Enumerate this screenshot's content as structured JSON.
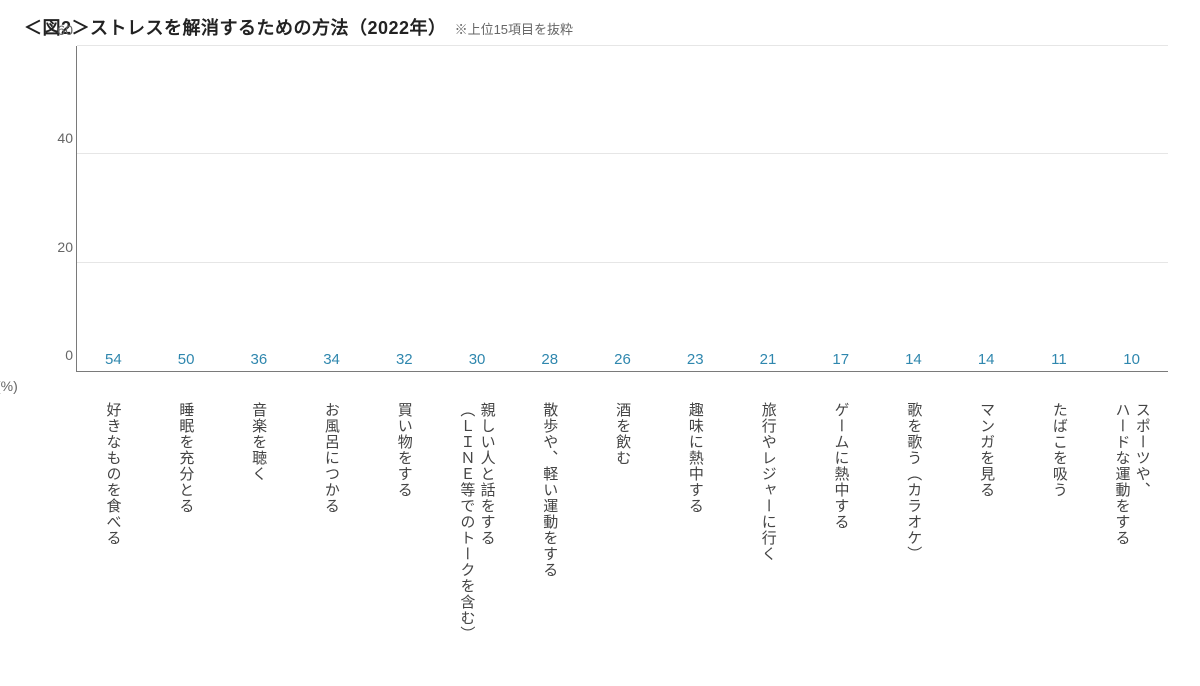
{
  "title": "＜図2＞ストレスを解消するための方法（2022年）",
  "subtitle": "※上位15項目を抜粋",
  "unit_label": "(%)",
  "chart": {
    "type": "bar",
    "ylim": [
      0,
      60
    ],
    "ytick_step": 20,
    "yticks": [
      0,
      20,
      40,
      60
    ],
    "bar_color": "#8bd2ee",
    "value_label_color": "#2f87ae",
    "axis_color": "#7a7a7a",
    "grid_color": "#e6e6e6",
    "background_color": "#ffffff",
    "tick_fontsize": 14,
    "value_fontsize": 15,
    "xlabel_fontsize": 15,
    "bar_width_ratio": 0.78,
    "categories": [
      "好きなものを食べる",
      "睡眠を充分とる",
      "音楽を聴く",
      "お風呂につかる",
      "買い物をする",
      "親しい人と話をする\n（ＬＩＮＥ等でのトークを含む）",
      "散歩や、軽い運動をする",
      "酒を飲む",
      "趣味に熱中する",
      "旅行やレジャーに行く",
      "ゲームに熱中する",
      "歌を歌う（カラオケ）",
      "マンガを見る",
      "たばこを吸う",
      "スポーツや、\nハードな運動をする"
    ],
    "values": [
      54,
      50,
      36,
      34,
      32,
      30,
      28,
      26,
      23,
      21,
      17,
      14,
      14,
      11,
      10
    ]
  }
}
